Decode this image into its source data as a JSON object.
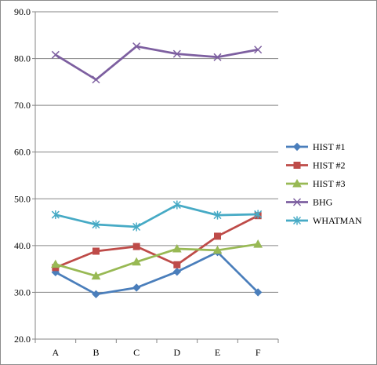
{
  "chart_data": {
    "type": "line",
    "title": "",
    "xlabel": "",
    "ylabel": "",
    "categories": [
      "A",
      "B",
      "C",
      "D",
      "E",
      "F"
    ],
    "ylim": [
      20,
      90
    ],
    "ytick_step": 10,
    "ytick_format": "0.0",
    "grid": true,
    "legend": "right",
    "series": [
      {
        "name": "HIST #1",
        "color": "#4a7ebb",
        "marker": "diamond",
        "values": [
          34.3,
          29.6,
          31.0,
          34.4,
          38.6,
          30.0
        ]
      },
      {
        "name": "HIST #2",
        "color": "#be4b48",
        "marker": "square",
        "values": [
          35.3,
          38.8,
          39.8,
          35.9,
          42.0,
          46.4
        ]
      },
      {
        "name": "HIST #3",
        "color": "#98b954",
        "marker": "triangle",
        "values": [
          36.0,
          33.5,
          36.5,
          39.3,
          39.0,
          40.3
        ]
      },
      {
        "name": "BHG",
        "color": "#7d5fa0",
        "marker": "x",
        "values": [
          80.8,
          75.5,
          82.6,
          81.0,
          80.3,
          81.9
        ]
      },
      {
        "name": "WHATMAN",
        "color": "#46aac5",
        "marker": "star",
        "values": [
          46.6,
          44.5,
          44.0,
          48.7,
          46.5,
          46.7
        ]
      }
    ]
  }
}
